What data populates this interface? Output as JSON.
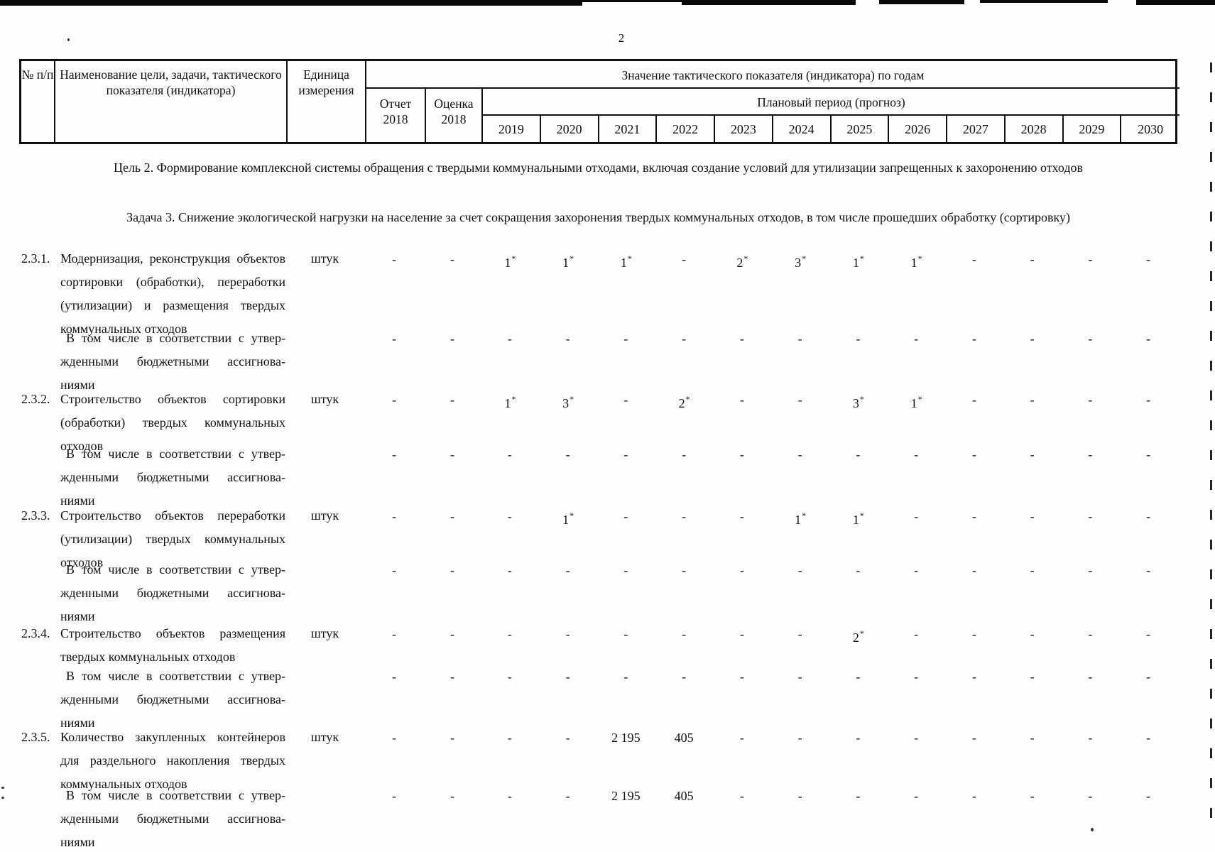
{
  "colors": {
    "ink": "#111111",
    "paper": "#fefefe"
  },
  "page": {
    "number": "2"
  },
  "table": {
    "header": {
      "no": "№ п/п",
      "name": "Наименование цели, задачи, такти­ческого показателя (индикатора)",
      "unit": "Единица измерения",
      "value_title": "Значение тактического показателя (индикатора) по годам",
      "report": "Отчет 2018",
      "estimate": "Оценка 2018",
      "plan": "Плановый период (прогноз)",
      "years": [
        "2019",
        "2020",
        "2021",
        "2022",
        "2023",
        "2024",
        "2025",
        "2026",
        "2027",
        "2028",
        "2029",
        "2030"
      ]
    }
  },
  "sections": {
    "goal": "Цель 2. Формирование комплексной системы обращения с твердыми коммунальными отходами, включая создание условий для утилизации запрещенных к захоронению отходов",
    "task": "Задача 3. Снижение экологической нагрузки на население за счет сокращения захоронения твердых коммунальных отходов, в том числе прошедших обработку (сортировку)"
  },
  "rows": [
    {
      "num": "2.3.1.",
      "name": "Модернизация, реконструкция объ­ектов сортировки (обработки), пере­работки (утилизации) и размещения твердых коммунальных отходов",
      "unit": "штук",
      "values": [
        "-",
        "-",
        "1*",
        "1*",
        "1*",
        "-",
        "2*",
        "3*",
        "1*",
        "1*",
        "-",
        "-",
        "-",
        "-"
      ]
    },
    {
      "num": "",
      "name": "В том числе в соответствии с утвер­жденными бюджетными ассигнова­ниями",
      "unit": "",
      "values": [
        "-",
        "-",
        "-",
        "-",
        "-",
        "-",
        "-",
        "-",
        "-",
        "-",
        "-",
        "-",
        "-",
        "-"
      ]
    },
    {
      "num": "2.3.2.",
      "name": "Строительство объектов сортировки (обработки) твердых коммунальных отходов",
      "unit": "штук",
      "values": [
        "-",
        "-",
        "1*",
        "3*",
        "-",
        "2*",
        "-",
        "-",
        "3*",
        "1*",
        "-",
        "-",
        "-",
        "-"
      ]
    },
    {
      "num": "",
      "name": "В том числе в соответствии с утвер­жденными бюджетными ассигнова­ниями",
      "unit": "",
      "values": [
        "-",
        "-",
        "-",
        "-",
        "-",
        "-",
        "-",
        "-",
        "-",
        "-",
        "-",
        "-",
        "-",
        "-"
      ]
    },
    {
      "num": "2.3.3.",
      "name": "Строительство объектов переработ­ки (утилизации) твердых комму­нальных отходов",
      "unit": "штук",
      "values": [
        "-",
        "-",
        "-",
        "1*",
        "-",
        "-",
        "-",
        "1*",
        "1*",
        "-",
        "-",
        "-",
        "-",
        "-"
      ]
    },
    {
      "num": "",
      "name": "В том числе в соответствии с утвер­жденными бюджетными ассигнова­ниями",
      "unit": "",
      "values": [
        "-",
        "-",
        "-",
        "-",
        "-",
        "-",
        "-",
        "-",
        "-",
        "-",
        "-",
        "-",
        "-",
        "-"
      ]
    },
    {
      "num": "2.3.4.",
      "name": "Строительство объектов размещения твердых коммунальных отходов",
      "unit": "штук",
      "values": [
        "-",
        "-",
        "-",
        "-",
        "-",
        "-",
        "-",
        "-",
        "2*",
        "-",
        "-",
        "-",
        "-",
        "-"
      ]
    },
    {
      "num": "",
      "name": "В том числе в соответствии с утвер­жденными бюджетными ассигнова­ниями",
      "unit": "",
      "values": [
        "-",
        "-",
        "-",
        "-",
        "-",
        "-",
        "-",
        "-",
        "-",
        "-",
        "-",
        "-",
        "-",
        "-"
      ]
    },
    {
      "num": "2.3.5.",
      "name": "Количество закупленных контейне­ров для раздельного накопления твердых коммунальных отходов",
      "unit": "штук",
      "values": [
        "-",
        "-",
        "-",
        "-",
        "2 195",
        "405",
        "-",
        "-",
        "-",
        "-",
        "-",
        "-",
        "-",
        "-"
      ]
    },
    {
      "num": "",
      "name": "В том числе в соответствии с утвер­жденными бюджетными ассигнова­ниями",
      "unit": "",
      "values": [
        "-",
        "-",
        "-",
        "-",
        "2 195",
        "405",
        "-",
        "-",
        "-",
        "-",
        "-",
        "-",
        "-",
        "-"
      ]
    }
  ]
}
